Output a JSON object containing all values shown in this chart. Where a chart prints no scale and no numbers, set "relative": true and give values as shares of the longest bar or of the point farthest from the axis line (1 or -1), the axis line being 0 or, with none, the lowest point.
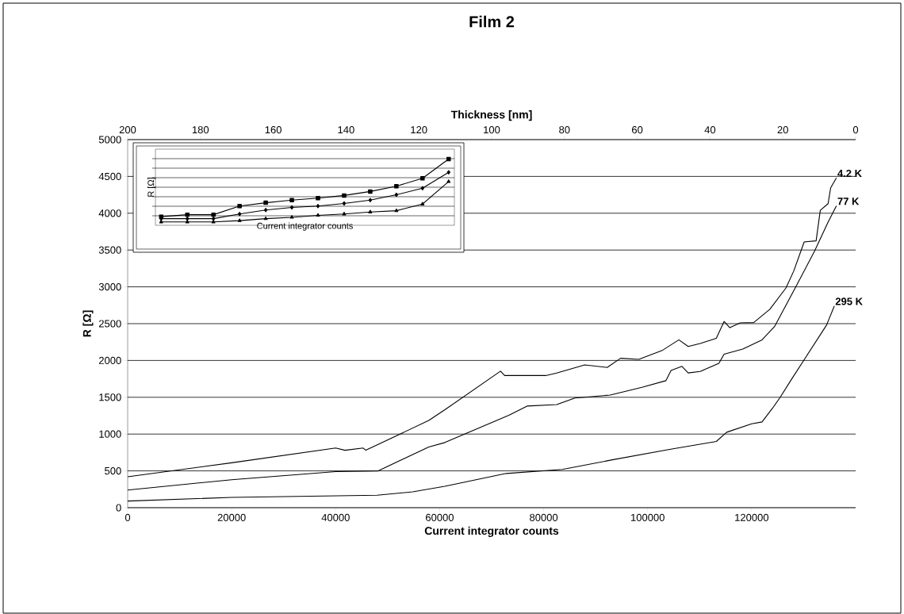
{
  "chart_data": [
    {
      "type": "line",
      "title": "Film 2",
      "xlabel": "Current integrator counts",
      "ylabel": "R [Ω]",
      "x2label": "Thickness [nm]",
      "xlim": [
        0,
        140000
      ],
      "xticks": [
        0,
        20000,
        40000,
        60000,
        80000,
        100000,
        120000
      ],
      "ylim": [
        0,
        5000
      ],
      "yticks": [
        0,
        500,
        1000,
        1500,
        2000,
        2500,
        3000,
        3500,
        4000,
        4500,
        5000
      ],
      "x2lim": [
        200,
        0
      ],
      "x2ticks": [
        200,
        180,
        160,
        140,
        120,
        100,
        80,
        60,
        40,
        20,
        0
      ],
      "grid": "y",
      "marker": "none",
      "series": [
        {
          "name": "4.2 K",
          "color": "#000000",
          "x": [
            0,
            20000,
            40000,
            41800,
            45300,
            45800,
            57900,
            61000,
            71700,
            72500,
            80400,
            82500,
            87900,
            92200,
            94800,
            98300,
            102900,
            106000,
            107800,
            110100,
            113200,
            114700,
            115800,
            117800,
            120400,
            123500,
            126600,
            128100,
            130100,
            132400,
            133200,
            134700,
            135200,
            136300
          ],
          "values": [
            420,
            610,
            810,
            780,
            810,
            780,
            1185,
            1330,
            1855,
            1795,
            1795,
            1830,
            1940,
            1905,
            2030,
            2015,
            2140,
            2280,
            2190,
            2230,
            2300,
            2530,
            2445,
            2510,
            2515,
            2695,
            2985,
            3215,
            3610,
            3625,
            4040,
            4130,
            4345,
            4480
          ]
        },
        {
          "name": "77 K",
          "color": "#000000",
          "x": [
            0,
            20000,
            40000,
            48200,
            57900,
            61000,
            73300,
            76800,
            82500,
            86000,
            92800,
            98900,
            103500,
            104500,
            106600,
            107800,
            110100,
            113700,
            114700,
            118300,
            122000,
            124400,
            128600,
            132100,
            134700,
            136300
          ],
          "values": [
            240,
            380,
            490,
            500,
            825,
            885,
            1255,
            1380,
            1400,
            1490,
            1530,
            1635,
            1725,
            1865,
            1920,
            1830,
            1850,
            1960,
            2085,
            2155,
            2280,
            2460,
            3015,
            3485,
            3880,
            4100
          ]
        },
        {
          "name": "295 K",
          "color": "#000000",
          "x": [
            0,
            20000,
            48000,
            54800,
            61000,
            72800,
            83600,
            92800,
            104000,
            113200,
            115200,
            120000,
            122000,
            124000,
            125500,
            127500,
            130100,
            134400,
            135900
          ],
          "values": [
            90,
            140,
            170,
            215,
            290,
            465,
            520,
            645,
            790,
            900,
            1025,
            1140,
            1165,
            1350,
            1500,
            1725,
            2010,
            2480,
            2740
          ]
        }
      ]
    },
    {
      "type": "line",
      "xlabel": "Current integrator counts",
      "ylabel": "R [Ω]",
      "relative": true,
      "tick_labels": false,
      "categories": [
        null,
        null,
        null,
        null,
        null,
        null,
        null,
        null,
        null,
        null,
        null,
        null
      ],
      "series": [
        {
          "color": "#000000",
          "marker": "square",
          "values": [
            0.13,
            0.16,
            0.16,
            0.29,
            0.34,
            0.38,
            0.41,
            0.45,
            0.51,
            0.59,
            0.71,
            1.0
          ]
        },
        {
          "color": "#000000",
          "marker": "diamond",
          "values": [
            0.1,
            0.1,
            0.1,
            0.17,
            0.23,
            0.27,
            0.29,
            0.33,
            0.38,
            0.46,
            0.56,
            0.8
          ]
        },
        {
          "color": "#000000",
          "marker": "triangle",
          "values": [
            0.05,
            0.05,
            0.05,
            0.07,
            0.1,
            0.12,
            0.15,
            0.17,
            0.2,
            0.22,
            0.32,
            0.66
          ]
        }
      ]
    }
  ]
}
